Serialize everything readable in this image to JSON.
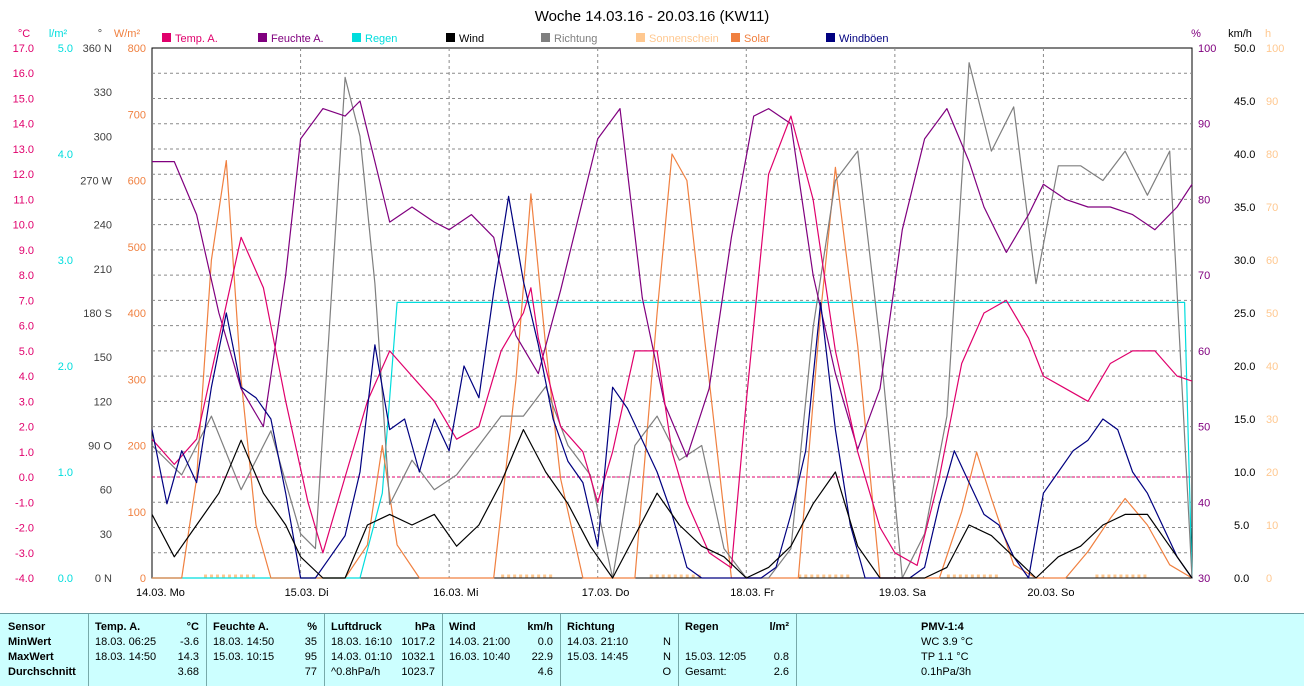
{
  "title": "Woche 14.03.16 - 20.03.16 (KW11)",
  "colors": {
    "temp": "#e0006c",
    "feuchte": "#80007f",
    "regen": "#00dddd",
    "wind": "#000000",
    "richtung": "#7f7f7f",
    "sonne": "#ffc890",
    "solar": "#f08040",
    "windboeen": "#000080"
  },
  "axes": {
    "temp": {
      "unit": "°C",
      "ticks": [
        "17.0",
        "16.0",
        "15.0",
        "14.0",
        "13.0",
        "12.0",
        "11.0",
        "10.0",
        "9.0",
        "8.0",
        "7.0",
        "6.0",
        "5.0",
        "4.0",
        "3.0",
        "2.0",
        "1.0",
        "0.0",
        "-1.0",
        "-2.0",
        "-3.0",
        "-4.0"
      ]
    },
    "regen": {
      "unit": "l/m²",
      "ticks": [
        "5.0",
        "4.0",
        "3.0",
        "2.0",
        "1.0",
        "0.0"
      ]
    },
    "richtung": {
      "unit": "°",
      "ticks": [
        "360 N",
        "330",
        "300",
        "270 W",
        "240",
        "210",
        "180 S",
        "150",
        "120",
        "90 O",
        "60",
        "30",
        "0 N"
      ]
    },
    "solar": {
      "unit": "W/m²",
      "ticks": [
        "800",
        "700",
        "600",
        "500",
        "400",
        "300",
        "200",
        "100",
        "0"
      ]
    },
    "feuchte": {
      "unit": "%",
      "ticks": [
        "100",
        "90",
        "80",
        "70",
        "60",
        "50",
        "40",
        "30"
      ]
    },
    "wind": {
      "unit": "km/h",
      "ticks": [
        "50.0",
        "45.0",
        "40.0",
        "35.0",
        "30.0",
        "25.0",
        "20.0",
        "15.0",
        "10.0",
        "5.0",
        "0.0"
      ]
    },
    "sonne": {
      "unit": "h",
      "ticks": [
        "100",
        "90",
        "80",
        "70",
        "60",
        "50",
        "40",
        "30",
        "20",
        "10",
        "0"
      ]
    }
  },
  "days": [
    "14.03.  Mo",
    "15.03.  Di",
    "16.03.  Mi",
    "17.03.  Do",
    "18.03.  Fr",
    "19.03.  Sa",
    "20.03.  So"
  ],
  "legend": [
    {
      "label": "Temp. A.",
      "color": "#e0006c"
    },
    {
      "label": "Feuchte A.",
      "color": "#80007f"
    },
    {
      "label": "Regen",
      "color": "#00dddd"
    },
    {
      "label": "Wind",
      "color": "#000000"
    },
    {
      "label": "Richtung",
      "color": "#7f7f7f"
    },
    {
      "label": "Sonnenschein",
      "color": "#ffc890"
    },
    {
      "label": "Solar",
      "color": "#f08040"
    },
    {
      "label": "Windböen",
      "color": "#000080"
    }
  ],
  "chart_data": {
    "type": "line",
    "title": "Woche 14.03.16 - 20.03.16 (KW11)",
    "x_unit": "days since 14.03.16 00:00",
    "xlim": [
      0,
      7
    ],
    "grid": true,
    "series": [
      {
        "name": "Temp. A.",
        "axis": "temp",
        "ylim": [
          -4,
          17
        ],
        "x": [
          0,
          0.15,
          0.3,
          0.45,
          0.6,
          0.75,
          0.9,
          1.05,
          1.15,
          1.3,
          1.45,
          1.6,
          1.75,
          1.9,
          2.05,
          2.2,
          2.35,
          2.5,
          2.55,
          2.6,
          2.75,
          2.9,
          3.0,
          3.1,
          3.25,
          3.4,
          3.5,
          3.6,
          3.75,
          3.9,
          4.0,
          4.15,
          4.3,
          4.45,
          4.6,
          4.75,
          4.9,
          5.0,
          5.15,
          5.3,
          5.45,
          5.6,
          5.75,
          5.9,
          6.0,
          6.15,
          6.3,
          6.45,
          6.6,
          6.75,
          6.9,
          7.0
        ],
        "values": [
          1.5,
          0.5,
          1.5,
          5.5,
          9.5,
          7.5,
          3.0,
          -1.0,
          -3.0,
          0.0,
          3.0,
          5.0,
          4.0,
          3.0,
          1.5,
          2.0,
          5.0,
          6.5,
          7.5,
          5.5,
          2.0,
          1.0,
          -1.0,
          1.0,
          5.0,
          5.0,
          1.0,
          -1.0,
          -3.0,
          -3.6,
          3.0,
          12.0,
          14.3,
          11.0,
          5.0,
          1.0,
          -2.0,
          -3.0,
          -3.5,
          0.0,
          4.5,
          6.5,
          7.0,
          5.5,
          4.0,
          3.5,
          3.0,
          4.5,
          5.0,
          5.0,
          4.0,
          3.8
        ]
      },
      {
        "name": "Feuchte A.",
        "axis": "feuchte",
        "ylim": [
          30,
          100
        ],
        "x": [
          0,
          0.15,
          0.3,
          0.45,
          0.6,
          0.75,
          0.9,
          1.0,
          1.15,
          1.3,
          1.4,
          1.5,
          1.6,
          1.75,
          1.9,
          2.0,
          2.15,
          2.3,
          2.45,
          2.6,
          2.75,
          2.9,
          3.0,
          3.15,
          3.3,
          3.45,
          3.6,
          3.75,
          3.9,
          4.05,
          4.15,
          4.3,
          4.45,
          4.6,
          4.75,
          4.9,
          5.05,
          5.2,
          5.35,
          5.5,
          5.6,
          5.75,
          5.9,
          6.0,
          6.15,
          6.3,
          6.45,
          6.6,
          6.75,
          6.9,
          7.0
        ],
        "values": [
          85,
          85,
          78,
          65,
          55,
          50,
          70,
          88,
          92,
          91,
          93,
          85,
          77,
          79,
          77,
          76,
          78,
          75,
          62,
          57,
          68,
          80,
          88,
          92,
          67,
          53,
          46,
          55,
          75,
          91,
          92,
          90,
          70,
          57,
          47,
          55,
          76,
          88,
          92,
          85,
          79,
          73,
          78,
          82,
          80,
          79,
          79,
          78,
          76,
          79,
          82
        ]
      },
      {
        "name": "Regen",
        "axis": "regen",
        "ylim": [
          0,
          5
        ],
        "x": [
          0,
          1.4,
          1.55,
          1.65,
          2,
          3,
          4,
          5,
          6,
          6.95,
          7.0
        ],
        "values": [
          0,
          0,
          0.8,
          2.6,
          2.6,
          2.6,
          2.6,
          2.6,
          2.6,
          2.6,
          0
        ]
      },
      {
        "name": "Wind",
        "axis": "wind",
        "ylim": [
          0,
          50
        ],
        "x": [
          0,
          0.15,
          0.3,
          0.45,
          0.6,
          0.75,
          0.9,
          1.0,
          1.15,
          1.3,
          1.45,
          1.6,
          1.75,
          1.9,
          2.05,
          2.2,
          2.35,
          2.5,
          2.65,
          2.8,
          2.95,
          3.1,
          3.25,
          3.4,
          3.55,
          3.7,
          3.85,
          4.0,
          4.15,
          4.3,
          4.45,
          4.6,
          4.75,
          4.9,
          5.05,
          5.2,
          5.35,
          5.5,
          5.65,
          5.8,
          5.95,
          6.1,
          6.25,
          6.4,
          6.55,
          6.7,
          6.85,
          7.0
        ],
        "values": [
          6,
          2,
          5,
          8,
          13,
          8,
          5,
          2,
          0,
          0,
          5,
          6,
          5,
          6,
          3,
          5,
          9,
          14,
          10,
          7,
          3,
          0,
          4,
          8,
          5,
          3,
          2,
          0,
          1,
          3,
          7,
          10,
          3,
          0,
          0,
          0,
          1,
          5,
          4,
          2,
          0,
          2,
          3,
          5,
          6,
          6,
          3,
          0
        ]
      },
      {
        "name": "Richtung",
        "axis": "richtung",
        "ylim": [
          0,
          360
        ],
        "x": [
          0,
          0.2,
          0.4,
          0.6,
          0.8,
          1.0,
          1.1,
          1.2,
          1.3,
          1.4,
          1.5,
          1.6,
          1.75,
          1.9,
          2.05,
          2.2,
          2.35,
          2.5,
          2.65,
          2.8,
          2.95,
          3.1,
          3.25,
          3.4,
          3.55,
          3.7,
          3.85,
          4.0,
          4.15,
          4.3,
          4.45,
          4.6,
          4.75,
          4.9,
          5.05,
          5.2,
          5.35,
          5.5,
          5.65,
          5.8,
          5.95,
          6.1,
          6.25,
          6.4,
          6.55,
          6.7,
          6.85,
          7.0
        ],
        "values": [
          90,
          70,
          110,
          60,
          100,
          30,
          20,
          180,
          340,
          300,
          200,
          50,
          80,
          60,
          70,
          90,
          110,
          110,
          130,
          90,
          70,
          0,
          90,
          110,
          80,
          90,
          20,
          0,
          0,
          20,
          170,
          270,
          290,
          160,
          0,
          30,
          110,
          350,
          290,
          320,
          200,
          280,
          280,
          270,
          290,
          260,
          290,
          0
        ]
      },
      {
        "name": "Solar",
        "axis": "solar",
        "ylim": [
          0,
          800
        ],
        "x": [
          0,
          0.2,
          0.3,
          0.4,
          0.5,
          0.6,
          0.7,
          0.8,
          0.95,
          1.1,
          1.3,
          1.45,
          1.55,
          1.65,
          1.8,
          1.9,
          2.1,
          2.3,
          2.45,
          2.55,
          2.65,
          2.75,
          2.9,
          3.05,
          3.25,
          3.4,
          3.5,
          3.6,
          3.75,
          3.9,
          4.05,
          4.2,
          4.35,
          4.5,
          4.6,
          4.75,
          4.9,
          5.1,
          5.3,
          5.45,
          5.55,
          5.65,
          5.8,
          5.95,
          6.15,
          6.3,
          6.45,
          6.55,
          6.7,
          6.85,
          7.0
        ],
        "values": [
          0,
          0,
          150,
          480,
          630,
          300,
          80,
          0,
          0,
          0,
          0,
          50,
          200,
          50,
          0,
          0,
          0,
          0,
          300,
          580,
          350,
          150,
          0,
          0,
          0,
          400,
          640,
          600,
          300,
          0,
          0,
          0,
          0,
          400,
          620,
          350,
          0,
          0,
          0,
          100,
          190,
          120,
          20,
          0,
          0,
          40,
          90,
          120,
          80,
          20,
          0
        ]
      },
      {
        "name": "Windböen",
        "axis": "wind",
        "ylim": [
          0,
          50
        ],
        "x": [
          0,
          0.1,
          0.2,
          0.3,
          0.4,
          0.5,
          0.6,
          0.7,
          0.8,
          0.9,
          1.0,
          1.1,
          1.2,
          1.3,
          1.4,
          1.5,
          1.6,
          1.7,
          1.8,
          1.9,
          2.0,
          2.1,
          2.2,
          2.3,
          2.4,
          2.5,
          2.6,
          2.7,
          2.8,
          2.9,
          3.0,
          3.1,
          3.2,
          3.3,
          3.4,
          3.5,
          3.6,
          3.7,
          3.8,
          3.9,
          4.0,
          4.1,
          4.2,
          4.3,
          4.4,
          4.5,
          4.6,
          4.7,
          4.8,
          4.9,
          5.0,
          5.1,
          5.2,
          5.3,
          5.4,
          5.5,
          5.6,
          5.7,
          5.8,
          5.9,
          6.0,
          6.1,
          6.2,
          6.3,
          6.4,
          6.5,
          6.6,
          6.7,
          6.8,
          6.9,
          7.0
        ],
        "values": [
          14,
          7,
          12,
          9,
          18,
          25,
          18,
          17,
          15,
          8,
          0,
          0,
          2,
          4,
          10,
          22,
          14,
          15,
          10,
          15,
          12,
          20,
          17,
          27,
          36,
          28,
          22,
          15,
          11,
          9,
          3,
          18,
          16,
          13,
          10,
          6,
          1,
          0,
          0,
          0,
          0,
          0,
          1,
          6,
          12,
          26,
          14,
          5,
          0,
          0,
          0,
          0,
          1,
          7,
          12,
          9,
          6,
          5,
          2,
          0,
          8,
          10,
          12,
          13,
          15,
          14,
          10,
          8,
          5,
          2,
          0
        ]
      }
    ]
  },
  "stats": {
    "sensor": {
      "header": "Sensor",
      "rows": [
        "MinWert",
        "MaxWert",
        "Durchschnitt"
      ]
    },
    "temp": {
      "header": "Temp. A.",
      "unit": "°C",
      "rows": [
        [
          "18.03.  06:25",
          "-3.6"
        ],
        [
          "18.03.  14:50",
          "14.3"
        ],
        [
          "",
          "3.68"
        ]
      ]
    },
    "feuchte": {
      "header": "Feuchte A.",
      "unit": "%",
      "rows": [
        [
          "18.03.  14:50",
          "35"
        ],
        [
          "15.03.  10:15",
          "95"
        ],
        [
          "",
          "77"
        ]
      ]
    },
    "luftdruck": {
      "header": "Luftdruck",
      "unit": "hPa",
      "rows": [
        [
          "18.03.  16:10",
          "1017.2"
        ],
        [
          "14.03.  01:10",
          "1032.1"
        ],
        [
          "^0.8hPa/h",
          "1023.7"
        ]
      ]
    },
    "wind": {
      "header": "Wind",
      "unit": "km/h",
      "rows": [
        [
          "14.03.  21:00",
          "0.0"
        ],
        [
          "16.03.  10:40",
          "22.9"
        ],
        [
          "",
          "4.6"
        ]
      ]
    },
    "richtung": {
      "header": "Richtung",
      "rows": [
        [
          "14.03.  21:10",
          "N"
        ],
        [
          "15.03.  14:45",
          "N"
        ],
        [
          "",
          "O"
        ]
      ]
    },
    "regen": {
      "header": "Regen",
      "unit": "l/m²",
      "rows": [
        [
          "",
          ""
        ],
        [
          "15.03.  12:05",
          "0.8"
        ],
        [
          "Gesamt:",
          "2.6"
        ]
      ]
    },
    "pmv": {
      "header": "PMV-1:4",
      "rows": [
        "WC 3.9 °C",
        "TP 1.1 °C",
        "0.1hPa/3h"
      ]
    }
  }
}
